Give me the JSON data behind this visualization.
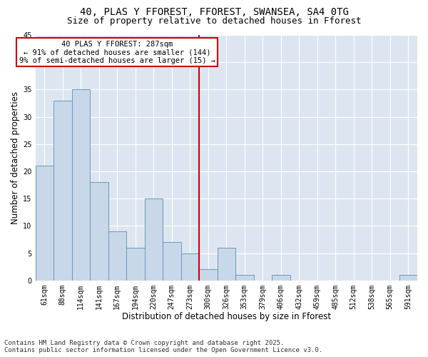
{
  "title_line1": "40, PLAS Y FFOREST, FFOREST, SWANSEA, SA4 0TG",
  "title_line2": "Size of property relative to detached houses in Fforest",
  "xlabel": "Distribution of detached houses by size in Fforest",
  "ylabel": "Number of detached properties",
  "categories": [
    "61sqm",
    "88sqm",
    "114sqm",
    "141sqm",
    "167sqm",
    "194sqm",
    "220sqm",
    "247sqm",
    "273sqm",
    "300sqm",
    "326sqm",
    "353sqm",
    "379sqm",
    "406sqm",
    "432sqm",
    "459sqm",
    "485sqm",
    "512sqm",
    "538sqm",
    "565sqm",
    "591sqm"
  ],
  "values": [
    21,
    33,
    35,
    18,
    9,
    6,
    15,
    7,
    5,
    2,
    6,
    1,
    0,
    1,
    0,
    0,
    0,
    0,
    0,
    0,
    1
  ],
  "bar_color": "#c8d8e8",
  "bar_edge_color": "#6699bb",
  "vline_x_index": 8.5,
  "vline_color": "#cc0000",
  "annotation_line1": "40 PLAS Y FFOREST: 287sqm",
  "annotation_line2": "← 91% of detached houses are smaller (144)",
  "annotation_line3": "9% of semi-detached houses are larger (15) →",
  "annotation_box_color": "#cc0000",
  "ylim": [
    0,
    45
  ],
  "yticks": [
    0,
    5,
    10,
    15,
    20,
    25,
    30,
    35,
    40,
    45
  ],
  "background_color": "#dde6f0",
  "footer_line1": "Contains HM Land Registry data © Crown copyright and database right 2025.",
  "footer_line2": "Contains public sector information licensed under the Open Government Licence v3.0.",
  "title_fontsize": 10,
  "subtitle_fontsize": 9,
  "axis_label_fontsize": 8.5,
  "tick_fontsize": 7,
  "annotation_fontsize": 7.5,
  "footer_fontsize": 6.5
}
